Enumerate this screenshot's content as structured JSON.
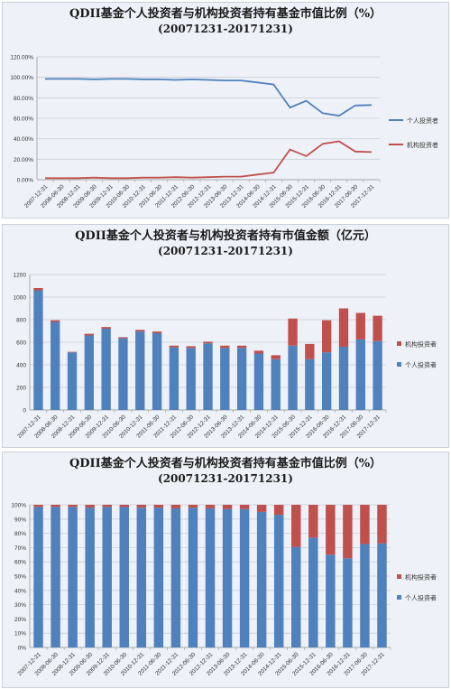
{
  "charts": [
    {
      "title": "QDII基金个人投资者与机构投资者持有基金市值比例（%）",
      "subtitle": "(20071231-20171231)"
    },
    {
      "title": "QDII基金个人投资者与机构投资者持有市值金额（亿元）",
      "subtitle": "(20071231-20171231)"
    },
    {
      "title": "QDII基金个人投资者与机构投资者持有基金市值比例（%）",
      "subtitle": "(20071231-20171231)"
    }
  ],
  "colors": {
    "individual": "#4f81bd",
    "institution": "#c0504d",
    "grid": "#c9cdd4",
    "axis": "#333333"
  },
  "chart_data": [
    {
      "type": "line",
      "title": "QDII基金个人投资者与机构投资者持有基金市值比例（%）",
      "subtitle": "(20071231-20171231)",
      "categories": [
        "2007-12-31",
        "2008-06-30",
        "2008-12-31",
        "2009-06-30",
        "2009-12-31",
        "2010-06-30",
        "2010-12-31",
        "2011-06-30",
        "2011-12-31",
        "2012-06-30",
        "2012-12-31",
        "2013-06-30",
        "2013-12-31",
        "2014-06-30",
        "2014-12-31",
        "2015-06-30",
        "2015-12-31",
        "2016-06-30",
        "2016-12-31",
        "2017-06-30",
        "2017-12-31"
      ],
      "series": [
        {
          "name": "个人投资者",
          "values": [
            98.5,
            98.5,
            98.5,
            98,
            98.5,
            98.5,
            98,
            98,
            97.5,
            98,
            97.5,
            97,
            97,
            95,
            93,
            70.5,
            77,
            65,
            62.5,
            72.5,
            73
          ]
        },
        {
          "name": "机构投资者",
          "values": [
            1.5,
            1.5,
            1.5,
            2,
            1.5,
            1.5,
            2,
            2,
            2.5,
            2,
            2.5,
            3,
            3,
            5,
            7,
            29.5,
            23,
            35,
            37.5,
            27.5,
            27
          ]
        }
      ],
      "ylim": [
        0,
        120
      ],
      "yticks": [
        "0.00%",
        "20.00%",
        "40.00%",
        "60.00%",
        "80.00%",
        "100.00%",
        "120.00%"
      ],
      "legend": "right",
      "grid": true
    },
    {
      "type": "bar",
      "stacked": true,
      "title": "QDII基金个人投资者与机构投资者持有市值金额（亿元）",
      "subtitle": "(20071231-20171231)",
      "categories": [
        "2007-12-31",
        "2008-06-30",
        "2008-12-31",
        "2009-06-30",
        "2009-12-31",
        "2010-06-30",
        "2010-12-31",
        "2011-06-30",
        "2011-12-31",
        "2012-06-30",
        "2012-12-31",
        "2013-06-30",
        "2013-12-31",
        "2014-06-30",
        "2014-12-31",
        "2015-06-30",
        "2015-12-31",
        "2016-06-30",
        "2016-12-31",
        "2017-06-30",
        "2017-12-31"
      ],
      "series": [
        {
          "name": "个人投资者",
          "values": [
            1060,
            780,
            510,
            660,
            720,
            635,
            695,
            680,
            555,
            550,
            590,
            550,
            550,
            500,
            450,
            570,
            450,
            510,
            560,
            625,
            610
          ]
        },
        {
          "name": "机构投资者",
          "values": [
            20,
            15,
            5,
            15,
            15,
            10,
            15,
            15,
            15,
            15,
            15,
            20,
            20,
            25,
            35,
            240,
            135,
            285,
            340,
            235,
            225
          ]
        }
      ],
      "ylim": [
        0,
        1200
      ],
      "yticks": [
        "0",
        "200",
        "400",
        "600",
        "800",
        "1000",
        "1200"
      ],
      "legend": "right",
      "legend_order": [
        "机构投资者",
        "个人投资者"
      ],
      "grid": true
    },
    {
      "type": "bar",
      "stacked": true,
      "percent": true,
      "title": "QDII基金个人投资者与机构投资者持有基金市值比例（%）",
      "subtitle": "(20071231-20171231)",
      "categories": [
        "2007-12-31",
        "2008-06-30",
        "2008-12-31",
        "2009-06-30",
        "2009-12-31",
        "2010-06-30",
        "2010-12-31",
        "2011-06-30",
        "2011-12-31",
        "2012-06-30",
        "2012-12-31",
        "2013-06-30",
        "2013-12-31",
        "2014-06-30",
        "2014-12-31",
        "2015-06-30",
        "2015-12-31",
        "2016-06-30",
        "2016-12-31",
        "2017-06-30",
        "2017-12-31"
      ],
      "series": [
        {
          "name": "个人投资者",
          "values": [
            98.5,
            98.5,
            98.5,
            98,
            98.5,
            98.5,
            98,
            98,
            97.5,
            98,
            97.5,
            97,
            97,
            95,
            93,
            70.5,
            77,
            65,
            62.5,
            72.5,
            73
          ]
        },
        {
          "name": "机构投资者",
          "values": [
            1.5,
            1.5,
            1.5,
            2,
            1.5,
            1.5,
            2,
            2,
            2.5,
            2,
            2.5,
            3,
            3,
            5,
            7,
            29.5,
            23,
            35,
            37.5,
            27.5,
            27
          ]
        }
      ],
      "ylim": [
        0,
        100
      ],
      "yticks": [
        "0%",
        "10%",
        "20%",
        "30%",
        "40%",
        "50%",
        "60%",
        "70%",
        "80%",
        "90%",
        "100%"
      ],
      "legend": "right",
      "legend_order": [
        "机构投资者",
        "个人投资者"
      ],
      "grid": true
    }
  ]
}
